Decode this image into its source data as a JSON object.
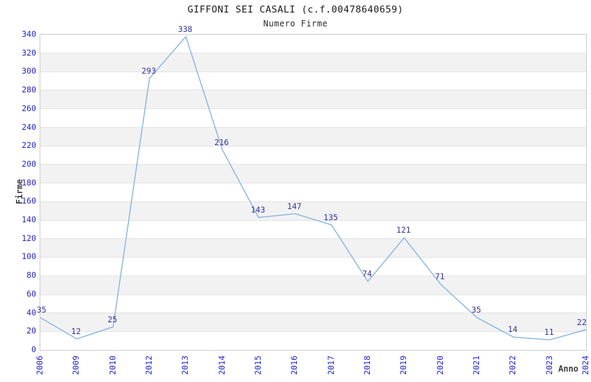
{
  "header": {
    "title": "GIFFONI SEI CASALI (c.f.00478640659)",
    "subtitle": "Numero Firme"
  },
  "chart_data": {
    "type": "line",
    "title": "GIFFONI SEI CASALI (c.f.00478640659)",
    "subtitle": "Numero Firme",
    "categories": [
      "2006",
      "2009",
      "2010",
      "2012",
      "2013",
      "2014",
      "2015",
      "2016",
      "2017",
      "2018",
      "2019",
      "2020",
      "2021",
      "2022",
      "2023",
      "2024"
    ],
    "values": [
      35,
      12,
      25,
      293,
      338,
      216,
      143,
      147,
      135,
      74,
      121,
      71,
      35,
      14,
      11,
      22
    ],
    "xlabel": "Anno",
    "ylabel": "Firme",
    "ylim": [
      0,
      340
    ],
    "ytick_step": 20,
    "grid": "horizontal-bands",
    "legend": "none",
    "data_labels_shown": true,
    "colors": {
      "line": "#85b4e4",
      "band_gray": "#f2f2f2",
      "band_white": "#ffffff",
      "gridline": "#e3e3e3",
      "plot_border": "#cccccc",
      "tick_label": "#2222cc",
      "data_label": "#333399",
      "axis_title": "#3d3d3d",
      "title_text": "#1a1a1a"
    }
  }
}
